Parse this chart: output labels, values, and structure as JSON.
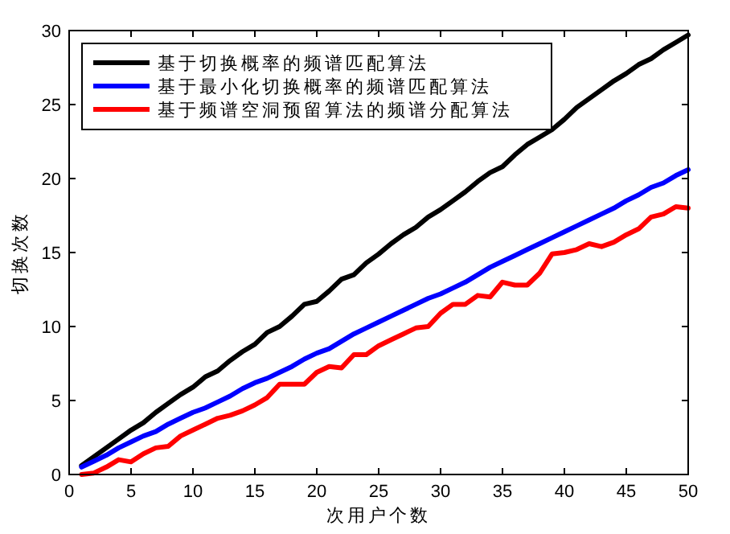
{
  "chart_data": {
    "type": "line",
    "xlabel": "次用户个数",
    "ylabel": "切换次数",
    "x": [
      1,
      2,
      3,
      4,
      5,
      6,
      7,
      8,
      9,
      10,
      11,
      12,
      13,
      14,
      15,
      16,
      17,
      18,
      19,
      20,
      21,
      22,
      23,
      24,
      25,
      26,
      27,
      28,
      29,
      30,
      31,
      32,
      33,
      34,
      35,
      36,
      37,
      38,
      39,
      40,
      41,
      42,
      43,
      44,
      45,
      46,
      47,
      48,
      49,
      50
    ],
    "series": [
      {
        "name": "基于切换概率的频谱匹配算法",
        "color": "#000000",
        "values": [
          0.6,
          1.2,
          1.8,
          2.4,
          3.0,
          3.5,
          4.2,
          4.8,
          5.4,
          5.9,
          6.6,
          7.0,
          7.7,
          8.3,
          8.8,
          9.6,
          10.0,
          10.7,
          11.5,
          11.7,
          12.4,
          13.2,
          13.5,
          14.3,
          14.9,
          15.6,
          16.2,
          16.7,
          17.4,
          17.9,
          18.5,
          19.1,
          19.8,
          20.4,
          20.8,
          21.6,
          22.3,
          22.8,
          23.3,
          24.0,
          24.8,
          25.4,
          26.0,
          26.6,
          27.1,
          27.7,
          28.1,
          28.7,
          29.2,
          29.7
        ]
      },
      {
        "name": "基于最小化切换概率的频谱匹配算法",
        "color": "#0000ff",
        "values": [
          0.5,
          0.9,
          1.3,
          1.8,
          2.2,
          2.6,
          2.9,
          3.4,
          3.8,
          4.2,
          4.5,
          4.9,
          5.3,
          5.8,
          6.2,
          6.5,
          6.9,
          7.3,
          7.8,
          8.2,
          8.5,
          9.0,
          9.5,
          9.9,
          10.3,
          10.7,
          11.1,
          11.5,
          11.9,
          12.2,
          12.6,
          13.0,
          13.5,
          14.0,
          14.4,
          14.8,
          15.2,
          15.6,
          16.0,
          16.4,
          16.8,
          17.2,
          17.6,
          18.0,
          18.5,
          18.9,
          19.4,
          19.7,
          20.2,
          20.6
        ]
      },
      {
        "name": "基于频谱空洞预留算法的频谱分配算法",
        "color": "#ff0000",
        "values": [
          0.0,
          0.1,
          0.5,
          1.0,
          0.85,
          1.4,
          1.8,
          1.9,
          2.6,
          3.0,
          3.4,
          3.8,
          4.0,
          4.3,
          4.7,
          5.2,
          6.1,
          6.1,
          6.1,
          6.9,
          7.3,
          7.2,
          8.1,
          8.1,
          8.7,
          9.1,
          9.5,
          9.9,
          10.0,
          10.9,
          11.5,
          11.5,
          12.1,
          12.0,
          13.0,
          12.8,
          12.8,
          13.6,
          14.9,
          15.0,
          15.2,
          15.6,
          15.4,
          15.7,
          16.2,
          16.6,
          17.4,
          17.6,
          18.1,
          18.0
        ]
      }
    ],
    "xlim": [
      0,
      50
    ],
    "xticks": [
      0,
      5,
      10,
      15,
      20,
      25,
      30,
      35,
      40,
      45,
      50
    ],
    "ylim": [
      0,
      30
    ],
    "yticks": [
      0,
      5,
      10,
      15,
      20,
      25,
      30
    ],
    "grid": false,
    "legend": "top left",
    "marker": "none",
    "line_style": "solid"
  }
}
